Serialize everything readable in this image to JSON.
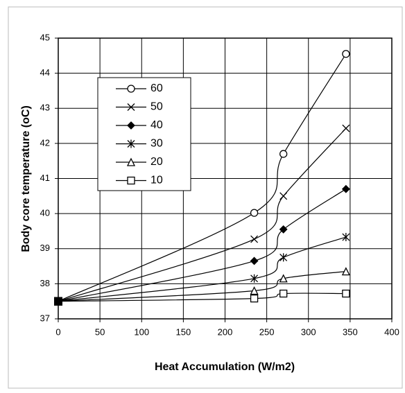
{
  "chart_data": {
    "type": "line",
    "xlabel": "Heat Accumulation (W/m2)",
    "ylabel": "Body core temperature (oC)",
    "x": [
      0,
      235,
      270,
      345
    ],
    "series": [
      {
        "name": "60",
        "color": "#000000",
        "marker": "circle",
        "values": [
          37.5,
          40.02,
          41.7,
          44.55
        ]
      },
      {
        "name": "50",
        "color": "#000000",
        "marker": "x",
        "values": [
          37.5,
          39.27,
          40.5,
          42.43
        ]
      },
      {
        "name": "40",
        "color": "#000000",
        "marker": "diamond",
        "values": [
          37.5,
          38.65,
          39.55,
          40.7
        ]
      },
      {
        "name": "30",
        "color": "#000000",
        "marker": "star",
        "values": [
          37.5,
          38.15,
          38.75,
          39.33
        ]
      },
      {
        "name": "20",
        "color": "#000000",
        "marker": "triangle",
        "values": [
          37.5,
          37.8,
          38.15,
          38.35
        ]
      },
      {
        "name": "10",
        "color": "#000000",
        "marker": "square",
        "values": [
          37.5,
          37.58,
          37.72,
          37.72
        ]
      }
    ],
    "xlim": [
      0,
      400
    ],
    "xticks": [
      0,
      50,
      100,
      150,
      200,
      250,
      300,
      350,
      400
    ],
    "ylim": [
      37,
      45
    ],
    "yticks": [
      37,
      38,
      39,
      40,
      41,
      42,
      43,
      44,
      45
    ],
    "grid": true,
    "legend": "upper-left"
  }
}
